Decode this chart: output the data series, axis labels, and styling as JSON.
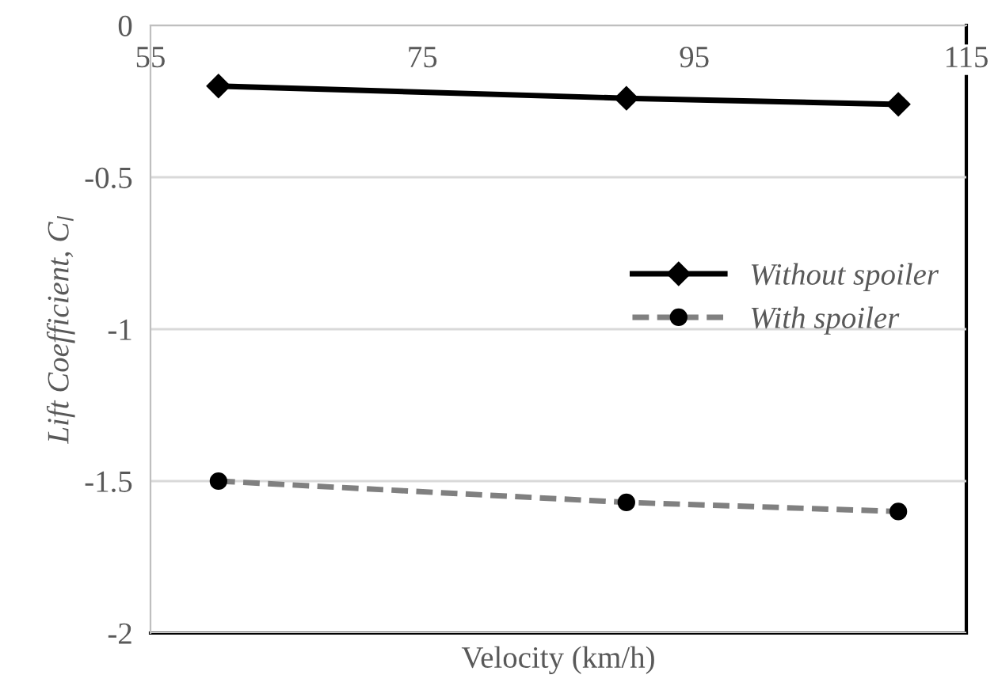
{
  "chart_data": {
    "type": "line",
    "xlabel": "Velocity (km/h)",
    "ylabel": "Lift Coefficient, C$_{l}$",
    "x": [
      60,
      90,
      110
    ],
    "series": [
      {
        "name": "Without spoiler",
        "color": "#000000",
        "values": [
          -0.2,
          -0.24,
          -0.26
        ],
        "marker": "diamond",
        "line_style": "solid"
      },
      {
        "name": "With spoiler",
        "color": "#808080",
        "values": [
          -1.5,
          -1.57,
          -1.6
        ],
        "marker": "circle",
        "line_style": "dashed"
      }
    ],
    "xlim": [
      55,
      115
    ],
    "xticks": [
      55,
      75,
      95,
      115
    ],
    "ylim": [
      -2,
      0
    ],
    "yticks": [
      0,
      -0.5,
      -1,
      -1.5,
      -2
    ],
    "grid": "y",
    "legend": "right"
  }
}
